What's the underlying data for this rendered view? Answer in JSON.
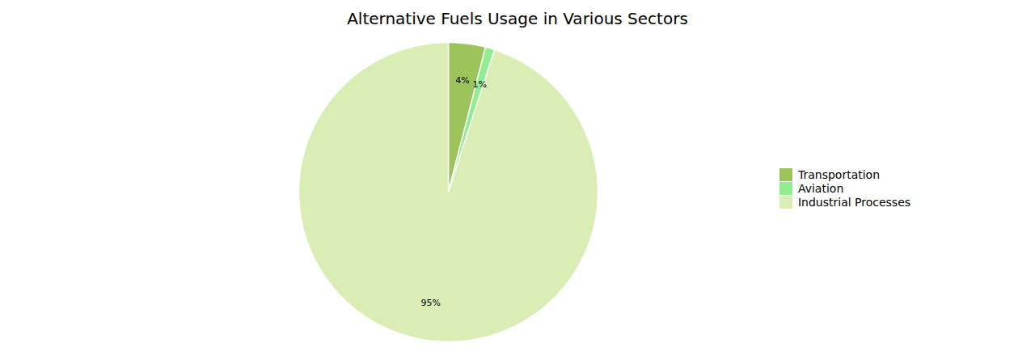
{
  "chart_data": {
    "type": "pie",
    "title": "Alternative Fuels Usage in Various Sectors",
    "categories": [
      "Transportation",
      "Aviation",
      "Industrial Processes"
    ],
    "values": [
      4,
      1,
      95
    ],
    "value_labels": [
      "4%",
      "1%",
      "95%"
    ],
    "colors": [
      "#9dc45a",
      "#90ee90",
      "#daedb5"
    ],
    "data_labels": true,
    "legend": "right"
  }
}
